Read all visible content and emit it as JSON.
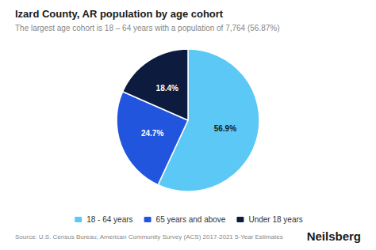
{
  "chart_data": {
    "type": "pie",
    "title": "Izard County, AR population by age cohort",
    "subtitle": "The largest age cohort is 18 – 64 years with a population of 7,764 (56.87%)",
    "categories": [
      "18 - 64 years",
      "65 years and above",
      "Under 18 years"
    ],
    "values": [
      56.9,
      24.7,
      18.4
    ],
    "value_labels": [
      "56.9%",
      "24.7%",
      "18.4%"
    ],
    "colors": [
      "#5BC8F5",
      "#2255DD",
      "#0D1B3E"
    ],
    "data_labels": true,
    "legend": "bottom",
    "annotations": [
      "Source: U.S. Census Bureau, American Community Survey (ACS) 2017-2021 5-Year Estimates",
      "Neilsberg"
    ]
  }
}
